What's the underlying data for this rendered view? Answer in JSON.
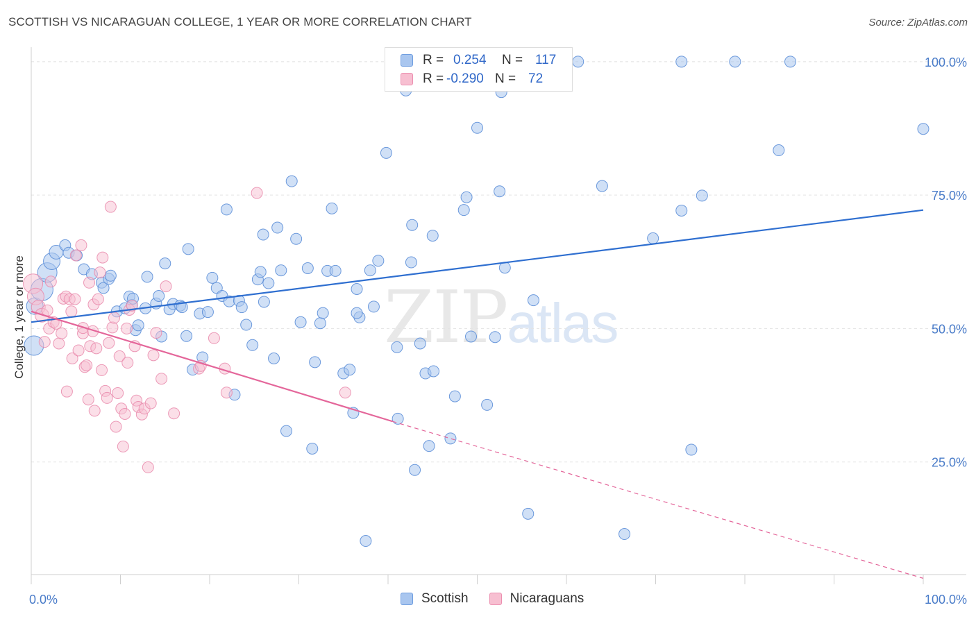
{
  "title": "SCOTTISH VS NICARAGUAN COLLEGE, 1 YEAR OR MORE CORRELATION CHART",
  "source": "Source: ZipAtlas.com",
  "watermark": {
    "zip": "ZIP",
    "atlas": "atlas"
  },
  "legend": {
    "rows": [
      {
        "r_label": "R =",
        "r_value": "0.254",
        "n_label": "N =",
        "n_value": "117",
        "color": "#a9c6ef",
        "border": "#6f9ee0"
      },
      {
        "r_label": "R =",
        "r_value": "-0.290",
        "n_label": "N =",
        "n_value": "72",
        "color": "#f7bfd1",
        "border": "#ec8fb0"
      }
    ]
  },
  "bottom_legend": [
    {
      "label": "Scottish",
      "color": "#a9c6ef",
      "border": "#6f9ee0"
    },
    {
      "label": "Nicaraguans",
      "color": "#f7bfd1",
      "border": "#ec8fb0"
    }
  ],
  "chart_data": {
    "type": "scatter",
    "title": "SCOTTISH VS NICARAGUAN COLLEGE, 1 YEAR OR MORE CORRELATION CHART",
    "xlabel": "",
    "ylabel": "College, 1 year or more",
    "xlim": [
      0,
      100
    ],
    "ylim": [
      0,
      104
    ],
    "x_tick_labels": [
      "0.0%",
      "100.0%"
    ],
    "y_ticks": [
      25,
      50,
      75,
      100
    ],
    "y_tick_labels": [
      "25.0%",
      "50.0%",
      "75.0%",
      "100.0%"
    ],
    "grid": true,
    "legend_position": "top-center",
    "colors": {
      "scottish_fill": "#a9c6ef",
      "scottish_stroke": "#5d8fd8",
      "scottish_line": "#2f6fd0",
      "nicaraguan_fill": "#f7bfd1",
      "nicaraguan_stroke": "#e98aab",
      "nicaraguan_line": "#e4669a"
    },
    "series": [
      {
        "name": "Scottish",
        "trend": {
          "x": [
            0,
            100
          ],
          "y": [
            51.2,
            72.2
          ],
          "dashed_from": null
        },
        "points": [
          [
            0.3,
            46.8,
            14
          ],
          [
            0.4,
            54.2,
            12
          ],
          [
            1.2,
            57.3,
            16
          ],
          [
            1.8,
            60.5,
            14
          ],
          [
            2.3,
            62.6,
            12
          ],
          [
            2.8,
            64.3,
            10
          ],
          [
            3.8,
            65.6,
            8
          ],
          [
            4.2,
            64.2,
            8
          ],
          [
            5.1,
            63.7,
            8
          ],
          [
            5.9,
            61.1,
            8
          ],
          [
            6.8,
            60.2,
            8
          ],
          [
            7.9,
            58.6,
            8
          ],
          [
            8.1,
            57.6,
            8
          ],
          [
            8.7,
            59.3,
            8
          ],
          [
            8.9,
            59.9,
            8
          ],
          [
            9.6,
            53.2,
            8
          ],
          [
            10.5,
            53.8,
            8
          ],
          [
            11.0,
            56.0,
            8
          ],
          [
            11.3,
            54.4,
            8
          ],
          [
            11.4,
            55.6,
            8
          ],
          [
            11.7,
            49.7,
            8
          ],
          [
            12.0,
            50.6,
            8
          ],
          [
            12.8,
            53.8,
            8
          ],
          [
            13.0,
            59.7,
            8
          ],
          [
            14.0,
            54.7,
            8
          ],
          [
            14.3,
            56.1,
            8
          ],
          [
            14.6,
            48.5,
            8
          ],
          [
            15.0,
            62.2,
            8
          ],
          [
            15.5,
            53.6,
            8
          ],
          [
            15.9,
            54.6,
            8
          ],
          [
            16.7,
            54.3,
            8
          ],
          [
            16.9,
            54.0,
            8
          ],
          [
            17.4,
            48.6,
            8
          ],
          [
            17.6,
            64.9,
            8
          ],
          [
            18.1,
            42.3,
            8
          ],
          [
            18.9,
            52.8,
            8
          ],
          [
            19.2,
            44.6,
            8
          ],
          [
            19.8,
            53.1,
            8
          ],
          [
            20.3,
            59.5,
            8
          ],
          [
            20.8,
            57.6,
            8
          ],
          [
            21.4,
            56.1,
            8
          ],
          [
            21.9,
            72.3,
            8
          ],
          [
            22.2,
            55.1,
            8
          ],
          [
            22.8,
            37.6,
            8
          ],
          [
            23.3,
            55.2,
            8
          ],
          [
            23.6,
            54.0,
            8
          ],
          [
            24.1,
            50.7,
            8
          ],
          [
            24.8,
            46.9,
            8
          ],
          [
            25.4,
            59.2,
            8
          ],
          [
            25.7,
            60.6,
            8
          ],
          [
            26.0,
            67.6,
            8
          ],
          [
            26.6,
            58.5,
            8
          ],
          [
            27.2,
            44.4,
            8
          ],
          [
            27.6,
            68.9,
            8
          ],
          [
            28.0,
            60.9,
            8
          ],
          [
            28.6,
            30.8,
            8
          ],
          [
            29.2,
            77.6,
            8
          ],
          [
            29.7,
            66.8,
            8
          ],
          [
            30.2,
            51.2,
            8
          ],
          [
            31.0,
            61.3,
            8
          ],
          [
            31.5,
            27.5,
            8
          ],
          [
            31.8,
            43.7,
            8
          ],
          [
            32.4,
            51.0,
            8
          ],
          [
            32.7,
            52.9,
            8
          ],
          [
            33.2,
            60.8,
            8
          ],
          [
            33.7,
            72.5,
            8
          ],
          [
            34.1,
            60.8,
            8
          ],
          [
            35.0,
            41.6,
            8
          ],
          [
            35.7,
            42.3,
            8
          ],
          [
            36.1,
            34.2,
            8
          ],
          [
            36.5,
            57.4,
            8
          ],
          [
            36.8,
            52.1,
            8
          ],
          [
            37.5,
            10.2,
            8
          ],
          [
            38.0,
            60.9,
            8
          ],
          [
            38.4,
            54.1,
            8
          ],
          [
            38.9,
            62.7,
            8
          ],
          [
            39.8,
            82.9,
            8
          ],
          [
            41.0,
            46.5,
            8
          ],
          [
            41.1,
            33.1,
            8
          ],
          [
            42.0,
            94.6,
            8
          ],
          [
            42.6,
            62.4,
            8
          ],
          [
            42.7,
            69.4,
            8
          ],
          [
            43.0,
            23.5,
            8
          ],
          [
            43.6,
            47.2,
            8
          ],
          [
            44.2,
            41.6,
            8
          ],
          [
            44.6,
            28.0,
            8
          ],
          [
            45.0,
            67.4,
            8
          ],
          [
            45.1,
            42.0,
            8
          ],
          [
            47.0,
            29.4,
            8
          ],
          [
            47.5,
            37.3,
            8
          ],
          [
            48.5,
            72.2,
            8
          ],
          [
            48.8,
            74.6,
            8
          ],
          [
            49.3,
            48.5,
            8
          ],
          [
            50.0,
            87.6,
            8
          ],
          [
            51.1,
            35.7,
            8
          ],
          [
            52.0,
            48.4,
            8
          ],
          [
            52.5,
            75.7,
            8
          ],
          [
            52.7,
            94.3,
            8
          ],
          [
            53.1,
            61.4,
            8
          ],
          [
            55.7,
            15.3,
            8
          ],
          [
            56.3,
            55.3,
            8
          ],
          [
            59.1,
            100.3,
            8
          ],
          [
            59.6,
            100.5,
            8
          ],
          [
            61.3,
            100.0,
            8
          ],
          [
            64.0,
            76.7,
            8
          ],
          [
            69.7,
            66.9,
            8
          ],
          [
            72.9,
            100.0,
            8
          ],
          [
            72.9,
            72.1,
            8
          ],
          [
            74.0,
            27.3,
            8
          ],
          [
            75.2,
            74.9,
            8
          ],
          [
            66.5,
            11.5,
            8
          ],
          [
            78.9,
            100.0,
            8
          ],
          [
            83.8,
            83.4,
            8
          ],
          [
            85.1,
            100.0,
            8
          ],
          [
            100.0,
            87.4,
            8
          ],
          [
            36.5,
            52.9,
            8
          ],
          [
            26.1,
            55.0,
            8
          ]
        ]
      },
      {
        "name": "Nicaraguans",
        "trend": {
          "x": [
            0,
            40.5
          ],
          "y": [
            53.2,
            32.6
          ],
          "dashed_to": [
            100,
            3.2
          ]
        },
        "points": [
          [
            0.2,
            58.4,
            14
          ],
          [
            0.5,
            56.0,
            12
          ],
          [
            0.8,
            54.0,
            10
          ],
          [
            1.2,
            52.5,
            10
          ],
          [
            1.5,
            47.5,
            8
          ],
          [
            1.8,
            53.4,
            8
          ],
          [
            2.0,
            50.0,
            8
          ],
          [
            2.2,
            58.8,
            8
          ],
          [
            2.5,
            51.2,
            8
          ],
          [
            2.8,
            50.9,
            8
          ],
          [
            3.1,
            47.2,
            8
          ],
          [
            3.4,
            49.1,
            8
          ],
          [
            3.6,
            55.6,
            8
          ],
          [
            3.9,
            56.0,
            8
          ],
          [
            4.0,
            38.2,
            8
          ],
          [
            4.3,
            55.5,
            8
          ],
          [
            4.5,
            53.2,
            8
          ],
          [
            4.6,
            44.4,
            8
          ],
          [
            4.9,
            55.5,
            8
          ],
          [
            5.0,
            63.7,
            8
          ],
          [
            5.3,
            45.9,
            8
          ],
          [
            5.6,
            65.6,
            8
          ],
          [
            5.8,
            49.1,
            8
          ],
          [
            6.0,
            42.8,
            8
          ],
          [
            6.2,
            43.1,
            8
          ],
          [
            6.4,
            36.7,
            8
          ],
          [
            6.5,
            58.6,
            8
          ],
          [
            6.6,
            46.7,
            8
          ],
          [
            6.9,
            49.5,
            8
          ],
          [
            7.0,
            54.5,
            8
          ],
          [
            7.1,
            34.6,
            8
          ],
          [
            7.3,
            46.3,
            8
          ],
          [
            7.5,
            55.5,
            8
          ],
          [
            7.7,
            60.5,
            8
          ],
          [
            7.9,
            42.2,
            8
          ],
          [
            8.0,
            63.3,
            8
          ],
          [
            8.3,
            38.3,
            8
          ],
          [
            8.5,
            37.0,
            8
          ],
          [
            8.7,
            47.3,
            8
          ],
          [
            8.9,
            72.8,
            8
          ],
          [
            9.1,
            50.2,
            8
          ],
          [
            9.3,
            52.0,
            8
          ],
          [
            9.5,
            31.6,
            8
          ],
          [
            9.7,
            37.9,
            8
          ],
          [
            9.9,
            44.8,
            8
          ],
          [
            10.1,
            35.0,
            8
          ],
          [
            10.3,
            27.9,
            8
          ],
          [
            10.5,
            34.0,
            8
          ],
          [
            10.7,
            50.0,
            8
          ],
          [
            10.8,
            43.6,
            8
          ],
          [
            11.0,
            53.5,
            8
          ],
          [
            11.3,
            54.3,
            8
          ],
          [
            11.6,
            46.7,
            8
          ],
          [
            11.8,
            36.5,
            8
          ],
          [
            12.0,
            35.3,
            8
          ],
          [
            12.4,
            33.9,
            8
          ],
          [
            12.7,
            35.0,
            8
          ],
          [
            13.1,
            24.0,
            8
          ],
          [
            13.4,
            36.0,
            8
          ],
          [
            13.7,
            45.0,
            8
          ],
          [
            14.0,
            49.2,
            8
          ],
          [
            14.6,
            40.6,
            8
          ],
          [
            15.1,
            57.9,
            8
          ],
          [
            16.0,
            34.1,
            8
          ],
          [
            18.8,
            42.5,
            8
          ],
          [
            19.0,
            43.0,
            8
          ],
          [
            20.5,
            48.2,
            8
          ],
          [
            21.7,
            42.5,
            8
          ],
          [
            21.9,
            38.0,
            8
          ],
          [
            25.3,
            75.4,
            8
          ],
          [
            35.2,
            38.0,
            8
          ],
          [
            5.8,
            50.1,
            8
          ]
        ]
      }
    ]
  }
}
